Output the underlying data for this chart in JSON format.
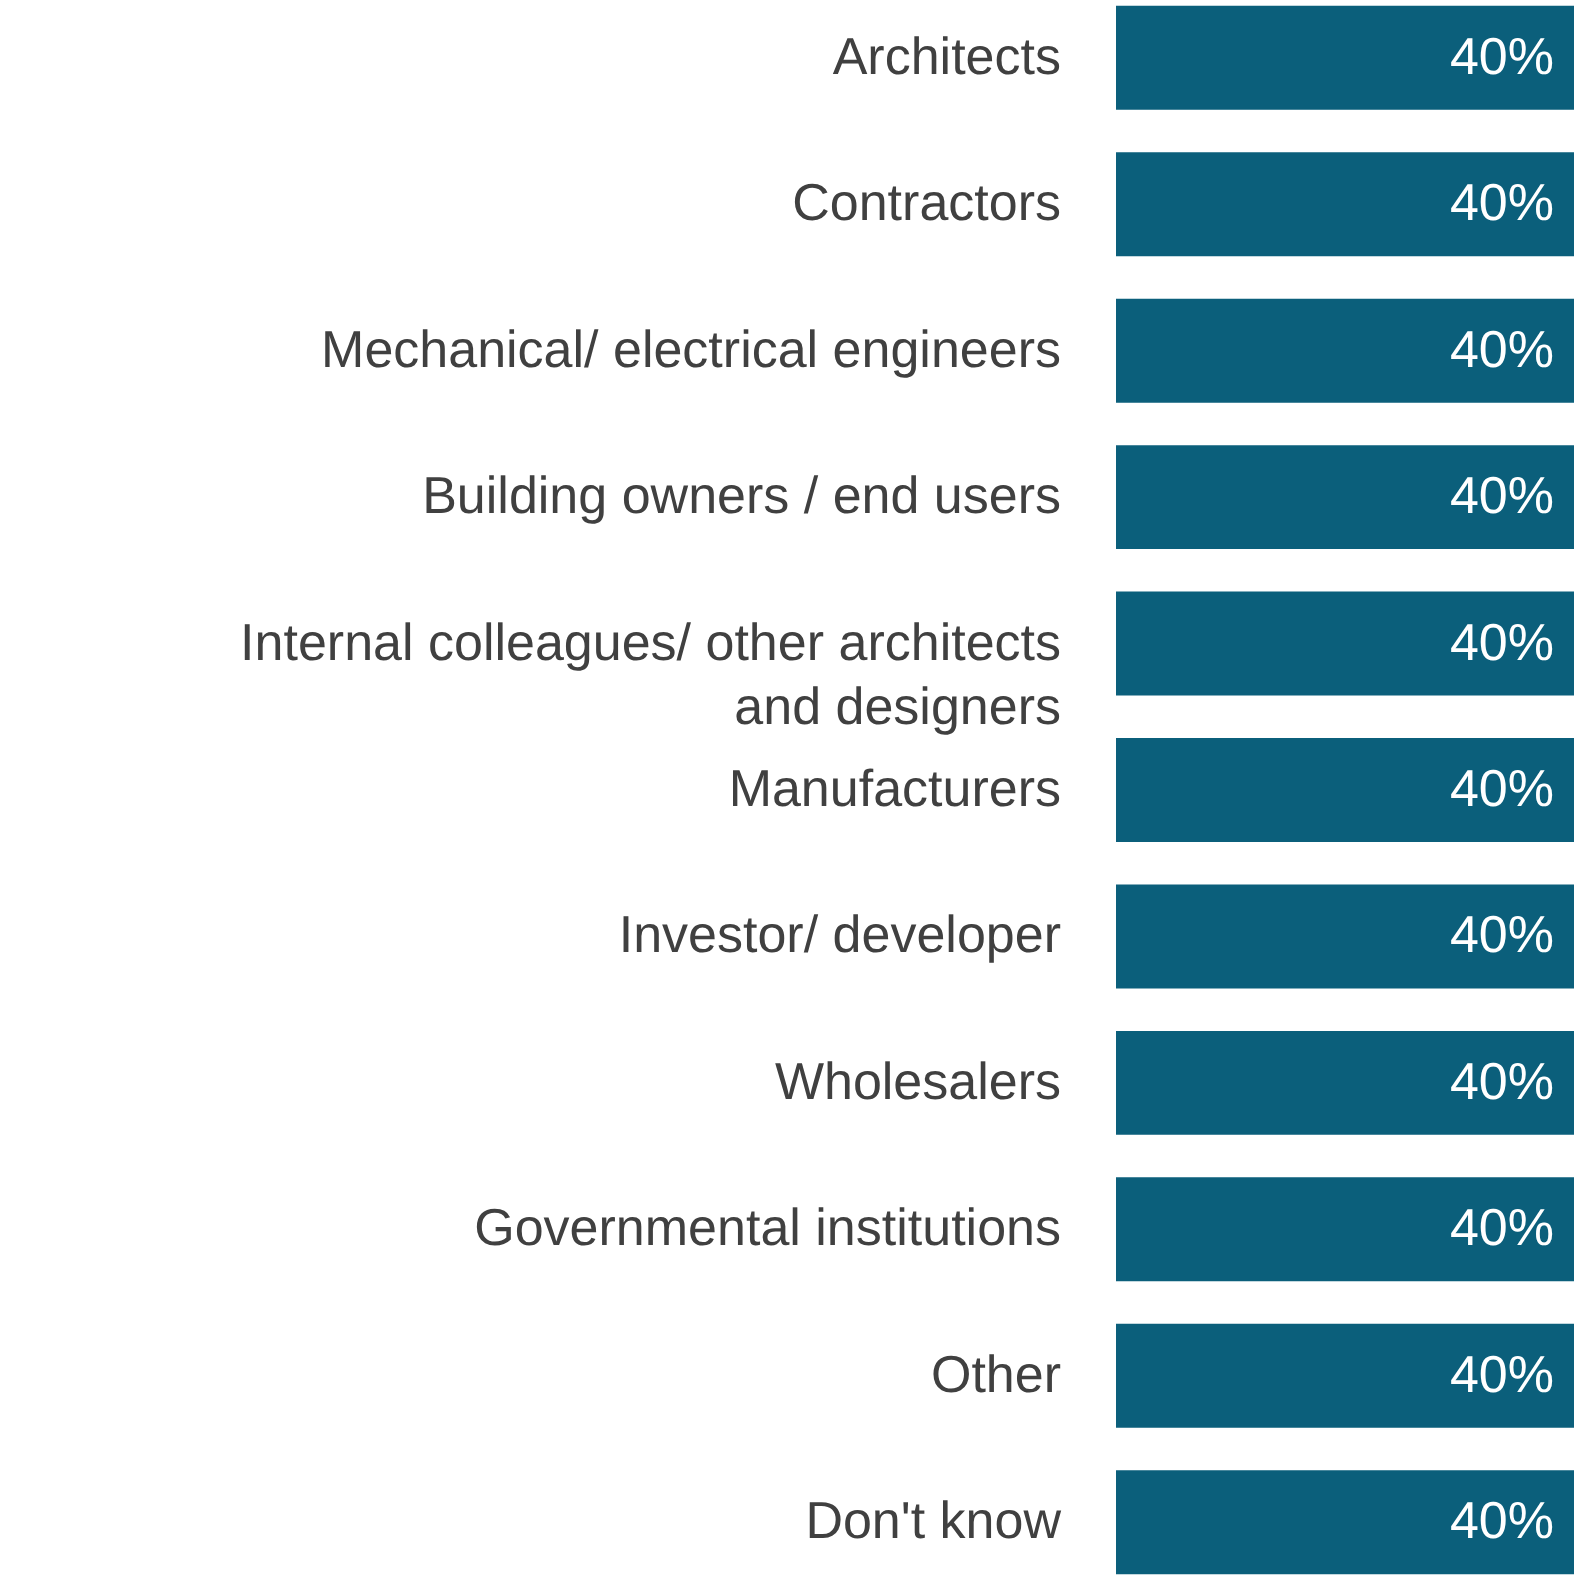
{
  "chart_data": {
    "type": "bar",
    "orientation": "horizontal",
    "categories": [
      "Architects",
      "Contractors",
      "Mechanical/ electrical engineers",
      "Building owners / end users",
      "Internal colleagues/ other architects and designers",
      "Manufacturers",
      "Investor/ developer",
      "Wholesalers",
      "Governmental institutions",
      "Other",
      "Don't know"
    ],
    "series": [
      {
        "color": "#0b5f7b",
        "values": [
          40,
          40,
          40,
          40,
          40,
          40,
          40,
          40,
          40,
          40,
          40
        ],
        "value_labels": [
          "40%",
          "40%",
          "40%",
          "40%",
          "40%",
          "40%",
          "40%",
          "40%",
          "40%",
          "40%",
          "40%"
        ]
      }
    ]
  }
}
